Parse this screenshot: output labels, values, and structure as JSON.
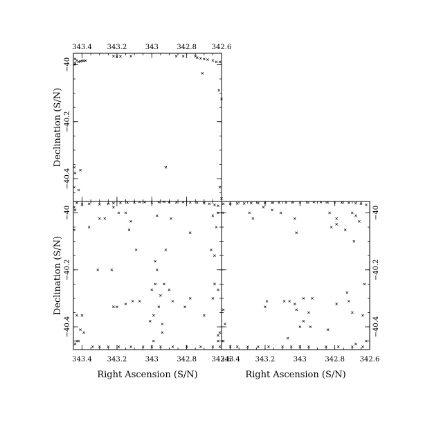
{
  "chart_data": [
    {
      "type": "scatter",
      "panel": "top-left",
      "xlabel": "",
      "ylabel": "Declination (S/N)",
      "xlim": [
        343.45,
        342.6
      ],
      "ylim": [
        -40.48,
        -39.96
      ],
      "xticks": [
        343.4,
        343.2,
        343,
        342.8,
        342.6
      ],
      "xtick_labels": [
        "343.4",
        "343.2",
        "343",
        "342.8",
        "342.6"
      ],
      "xtick_position": "top",
      "yticks": [
        -40,
        -40.2,
        -40.4
      ],
      "ytick_labels": [
        "-40",
        "-40.2",
        "-40.4"
      ],
      "ytick_position": "left",
      "points": [
        [
          343.44,
          -39.98
        ],
        [
          343.43,
          -39.985
        ],
        [
          343.42,
          -39.99
        ],
        [
          343.41,
          -39.988
        ],
        [
          343.4,
          -39.987
        ],
        [
          343.39,
          -39.986
        ],
        [
          343.38,
          -39.986
        ],
        [
          343.445,
          -40.0
        ],
        [
          343.44,
          -39.995
        ],
        [
          343.22,
          -39.97
        ],
        [
          343.2,
          -39.972
        ],
        [
          343.18,
          -39.971
        ],
        [
          343.12,
          -39.97
        ],
        [
          342.86,
          -39.97
        ],
        [
          342.82,
          -39.97
        ],
        [
          342.75,
          -39.97
        ],
        [
          342.74,
          -39.975
        ],
        [
          342.72,
          -39.978
        ],
        [
          342.7,
          -39.98
        ],
        [
          342.68,
          -39.982
        ],
        [
          342.65,
          -39.985
        ],
        [
          342.63,
          -39.99
        ],
        [
          342.61,
          -39.99
        ],
        [
          342.71,
          -40.03
        ],
        [
          342.615,
          -40.09
        ],
        [
          342.6,
          -40.12
        ],
        [
          342.92,
          -40.36
        ],
        [
          343.445,
          -40.36
        ],
        [
          343.44,
          -40.38
        ],
        [
          343.41,
          -40.37
        ],
        [
          343.445,
          -40.43
        ],
        [
          343.42,
          -40.44
        ],
        [
          342.61,
          -40.43
        ],
        [
          342.6,
          -40.47
        ]
      ]
    },
    {
      "type": "scatter",
      "panel": "bottom-left",
      "xlabel": "Right Ascension (S/N)",
      "ylabel": "Declination (S/N)",
      "xlim": [
        343.45,
        342.6
      ],
      "ylim": [
        -40.48,
        -39.96
      ],
      "xticks": [
        343.4,
        343.2,
        343,
        342.8,
        342.6
      ],
      "xtick_labels": [
        "343.4",
        "343.2",
        "343",
        "342.8",
        "342.6"
      ],
      "xtick_position": "bottom",
      "yticks": [
        -40,
        -40.2,
        -40.4
      ],
      "ytick_labels": [
        "-40",
        "-40.2",
        "-40.4"
      ],
      "ytick_position": "left",
      "points": [
        [
          343.43,
          -39.965
        ],
        [
          343.4,
          -39.97
        ],
        [
          343.36,
          -39.968
        ],
        [
          343.3,
          -39.97
        ],
        [
          343.25,
          -39.968
        ],
        [
          343.22,
          -39.966
        ],
        [
          343.18,
          -39.965
        ],
        [
          343.14,
          -39.964
        ],
        [
          343.1,
          -39.963
        ],
        [
          343.07,
          -39.962
        ],
        [
          343.04,
          -39.962
        ],
        [
          343.0,
          -39.963
        ],
        [
          342.96,
          -39.962
        ],
        [
          342.93,
          -39.961
        ],
        [
          342.9,
          -39.962
        ],
        [
          342.86,
          -39.963
        ],
        [
          342.82,
          -39.962
        ],
        [
          342.78,
          -39.963
        ],
        [
          342.74,
          -39.964
        ],
        [
          342.7,
          -39.966
        ],
        [
          342.67,
          -39.968
        ],
        [
          342.64,
          -39.972
        ],
        [
          342.62,
          -39.975
        ],
        [
          343.445,
          -39.98
        ],
        [
          343.44,
          -39.99
        ],
        [
          343.445,
          -40.06
        ],
        [
          343.36,
          -40.05
        ],
        [
          343.27,
          -40.02
        ],
        [
          343.22,
          -39.98
        ],
        [
          343.19,
          -40.0
        ],
        [
          343.15,
          -40.0
        ],
        [
          343.13,
          -40.06
        ],
        [
          343.3,
          -40.02
        ],
        [
          343.12,
          -40.03
        ],
        [
          342.97,
          -40.01
        ],
        [
          342.89,
          -40.02
        ],
        [
          342.78,
          -40.07
        ],
        [
          342.65,
          -40.01
        ],
        [
          342.63,
          -40.05
        ],
        [
          342.62,
          -40.0
        ],
        [
          342.66,
          -40.13
        ],
        [
          342.64,
          -40.15
        ],
        [
          343.09,
          -40.13
        ],
        [
          342.92,
          -40.13
        ],
        [
          342.98,
          -40.17
        ],
        [
          342.97,
          -40.2
        ],
        [
          343.31,
          -40.2
        ],
        [
          343.23,
          -40.2
        ],
        [
          342.98,
          -40.25
        ],
        [
          342.93,
          -40.25
        ],
        [
          342.64,
          -40.25
        ],
        [
          342.62,
          -40.27
        ],
        [
          343.0,
          -40.27
        ],
        [
          342.95,
          -40.29
        ],
        [
          342.9,
          -40.27
        ],
        [
          342.78,
          -40.3
        ],
        [
          342.65,
          -40.3
        ],
        [
          343.15,
          -40.32
        ],
        [
          343.07,
          -40.31
        ],
        [
          342.96,
          -40.33
        ],
        [
          342.99,
          -40.36
        ],
        [
          343.11,
          -40.31
        ],
        [
          342.88,
          -40.31
        ],
        [
          343.2,
          -40.33
        ],
        [
          343.22,
          -40.33
        ],
        [
          342.81,
          -40.33
        ],
        [
          342.7,
          -40.36
        ],
        [
          343.43,
          -40.36
        ],
        [
          343.4,
          -40.36
        ],
        [
          343.41,
          -40.41
        ],
        [
          343.39,
          -40.42
        ],
        [
          343.01,
          -40.38
        ],
        [
          342.94,
          -40.39
        ],
        [
          342.94,
          -40.42
        ],
        [
          342.62,
          -40.43
        ],
        [
          342.62,
          -40.45
        ],
        [
          343.43,
          -40.45
        ],
        [
          343.44,
          -40.46
        ],
        [
          343.42,
          -40.45
        ],
        [
          342.99,
          -40.45
        ],
        [
          343.34,
          -40.47
        ],
        [
          343.3,
          -40.47
        ],
        [
          343.25,
          -40.47
        ],
        [
          343.19,
          -40.47
        ],
        [
          343.12,
          -40.47
        ],
        [
          343.05,
          -40.47
        ],
        [
          343.0,
          -40.47
        ],
        [
          342.95,
          -40.47
        ],
        [
          342.88,
          -40.47
        ],
        [
          342.8,
          -40.47
        ],
        [
          342.72,
          -40.47
        ],
        [
          342.65,
          -40.47
        ],
        [
          342.61,
          -40.47
        ],
        [
          342.61,
          -40.42
        ]
      ]
    },
    {
      "type": "scatter",
      "panel": "bottom-right",
      "xlabel": "Right Ascension (S/N)",
      "ylabel": "",
      "xlim": [
        343.45,
        342.6
      ],
      "ylim": [
        -40.48,
        -39.96
      ],
      "xticks": [
        343.4,
        343.2,
        343,
        342.8,
        342.6
      ],
      "xtick_labels": [
        "343.4",
        "343.2",
        "343",
        "342.8",
        "342.6"
      ],
      "xtick_position": "bottom",
      "yticks": [
        -40,
        -40.2,
        -40.4
      ],
      "ytick_labels": [
        "-40",
        "-40.2",
        "-40.4"
      ],
      "ytick_position": "right",
      "points": [
        [
          343.44,
          -39.968
        ],
        [
          343.4,
          -39.968
        ],
        [
          343.36,
          -39.967
        ],
        [
          343.32,
          -39.967
        ],
        [
          343.28,
          -39.966
        ],
        [
          343.24,
          -39.966
        ],
        [
          343.2,
          -39.965
        ],
        [
          343.16,
          -39.965
        ],
        [
          343.12,
          -39.964
        ],
        [
          343.08,
          -39.964
        ],
        [
          343.04,
          -39.963
        ],
        [
          343.0,
          -39.963
        ],
        [
          342.96,
          -39.963
        ],
        [
          342.92,
          -39.962
        ],
        [
          342.88,
          -39.962
        ],
        [
          342.84,
          -39.963
        ],
        [
          342.8,
          -39.963
        ],
        [
          342.76,
          -39.964
        ],
        [
          342.72,
          -39.965
        ],
        [
          342.68,
          -39.966
        ],
        [
          342.65,
          -39.968
        ],
        [
          342.62,
          -39.972
        ],
        [
          343.445,
          -40.0
        ],
        [
          343.29,
          -40.0
        ],
        [
          343.27,
          -40.02
        ],
        [
          343.21,
          -39.98
        ],
        [
          343.16,
          -39.99
        ],
        [
          343.11,
          -40.0
        ],
        [
          343.03,
          -40.02
        ],
        [
          342.83,
          -40.0
        ],
        [
          342.79,
          -40.02
        ],
        [
          342.7,
          -40.0
        ],
        [
          342.68,
          -40.01
        ],
        [
          342.66,
          -40.03
        ],
        [
          342.82,
          -40.05
        ],
        [
          342.79,
          -40.04
        ],
        [
          343.02,
          -40.07
        ],
        [
          342.74,
          -40.06
        ],
        [
          342.69,
          -40.1
        ],
        [
          343.2,
          -40.33
        ],
        [
          343.19,
          -40.31
        ],
        [
          343.09,
          -40.31
        ],
        [
          343.06,
          -40.31
        ],
        [
          343.03,
          -40.32
        ],
        [
          342.98,
          -40.3
        ],
        [
          342.93,
          -40.3
        ],
        [
          342.79,
          -40.32
        ],
        [
          342.72,
          -40.31
        ],
        [
          343.02,
          -40.34
        ],
        [
          342.95,
          -40.35
        ],
        [
          342.98,
          -40.38
        ],
        [
          343.0,
          -40.4
        ],
        [
          342.94,
          -40.4
        ],
        [
          342.73,
          -40.28
        ],
        [
          342.7,
          -40.35
        ],
        [
          342.63,
          -40.25
        ],
        [
          342.64,
          -40.36
        ],
        [
          343.44,
          -40.34
        ],
        [
          343.43,
          -40.39
        ],
        [
          343.44,
          -40.45
        ],
        [
          343.4,
          -40.47
        ],
        [
          343.36,
          -40.47
        ],
        [
          343.3,
          -40.47
        ],
        [
          343.24,
          -40.47
        ],
        [
          343.18,
          -40.47
        ],
        [
          343.1,
          -40.47
        ],
        [
          343.05,
          -40.47
        ],
        [
          343.0,
          -40.47
        ],
        [
          342.95,
          -40.47
        ],
        [
          342.85,
          -40.47
        ],
        [
          342.78,
          -40.47
        ],
        [
          342.7,
          -40.47
        ],
        [
          342.64,
          -40.47
        ],
        [
          342.62,
          -40.45
        ],
        [
          342.68,
          -40.46
        ],
        [
          343.07,
          -40.44
        ],
        [
          342.84,
          -40.41
        ]
      ]
    }
  ]
}
